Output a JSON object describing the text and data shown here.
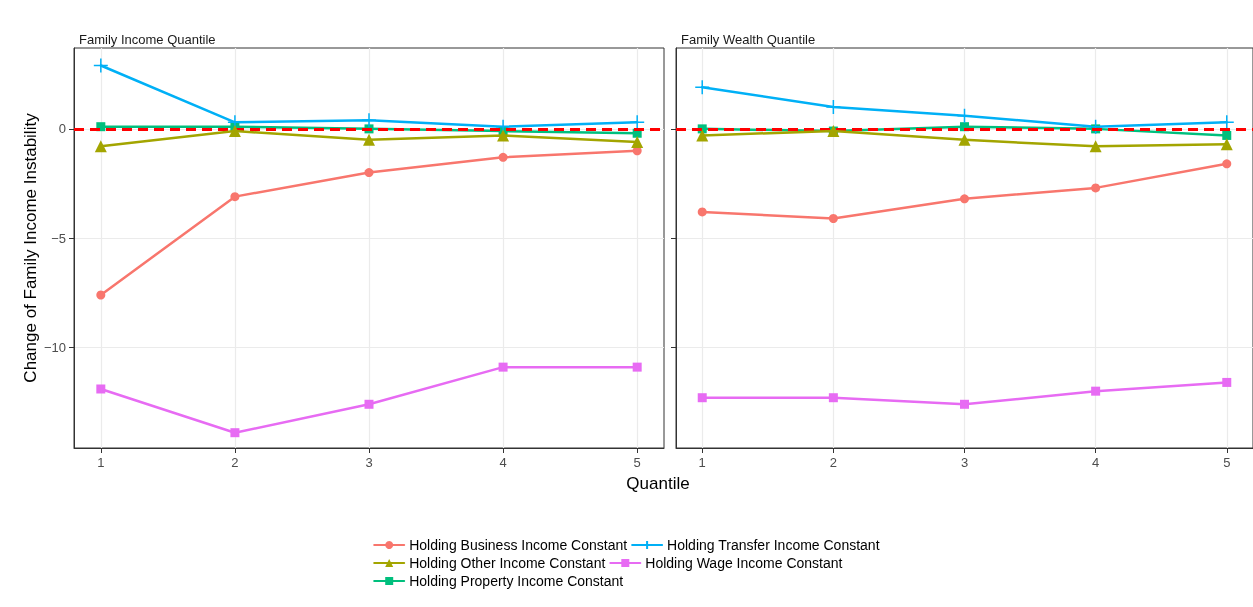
{
  "chart_data": [
    {
      "type": "line",
      "title": "Family Income Quantile",
      "ylabel": "Change of Family Income Instability",
      "x": [
        1,
        2,
        3,
        4,
        5
      ],
      "xlim": [
        0.8,
        5.2
      ],
      "xticks": [
        1,
        2,
        3,
        4,
        5
      ],
      "ylim": [
        -14.6,
        3.7
      ],
      "yticks": [
        -10,
        -5,
        0
      ],
      "grid": true,
      "legend": "bottom",
      "ref_lines": [
        {
          "axis": "y",
          "value": 0,
          "color": "#ff0000",
          "line_style": "dashed"
        }
      ],
      "series": [
        {
          "name": "Holding Business Income Constant",
          "color": "#f8766d",
          "marker": "circle",
          "values": [
            -7.6,
            -3.1,
            -2.0,
            -1.3,
            -1.0
          ]
        },
        {
          "name": "Holding Other Income Constant",
          "color": "#a3a500",
          "marker": "triangle",
          "values": [
            -0.8,
            -0.1,
            -0.5,
            -0.3,
            -0.6
          ]
        },
        {
          "name": "Holding Property Income Constant",
          "color": "#00bf7d",
          "marker": "square",
          "values": [
            0.1,
            0.1,
            0.0,
            -0.1,
            -0.2
          ]
        },
        {
          "name": "Holding Transfer Income Constant",
          "color": "#00b0f6",
          "marker": "cross",
          "values": [
            2.9,
            0.3,
            0.4,
            0.1,
            0.3
          ]
        },
        {
          "name": "Holding Wage Income Constant",
          "color": "#e76bf3",
          "marker": "square",
          "values": [
            -11.9,
            -13.9,
            -12.6,
            -10.9,
            -10.9
          ]
        }
      ]
    },
    {
      "type": "line",
      "title": "Family Wealth Quantile",
      "xlabel": "Quantile",
      "x": [
        1,
        2,
        3,
        4,
        5
      ],
      "xlim": [
        0.8,
        5.2
      ],
      "xticks": [
        1,
        2,
        3,
        4,
        5
      ],
      "ylim": [
        -14.6,
        3.7
      ],
      "yticks": [
        -10,
        -5,
        0
      ],
      "grid": true,
      "tick_labels": "x",
      "ref_lines": [
        {
          "axis": "y",
          "value": 0,
          "color": "#ff0000",
          "line_style": "dashed"
        }
      ],
      "series": [
        {
          "color": "#f8766d",
          "marker": "circle",
          "values": [
            -3.8,
            -4.1,
            -3.2,
            -2.7,
            -1.6
          ]
        },
        {
          "color": "#a3a500",
          "marker": "triangle",
          "values": [
            -0.3,
            -0.1,
            -0.5,
            -0.8,
            -0.7
          ]
        },
        {
          "color": "#00bf7d",
          "marker": "square",
          "values": [
            0.0,
            -0.1,
            0.1,
            0.0,
            -0.3
          ]
        },
        {
          "color": "#00b0f6",
          "marker": "cross",
          "values": [
            1.9,
            1.0,
            0.6,
            0.1,
            0.3
          ]
        },
        {
          "color": "#e76bf3",
          "marker": "square",
          "values": [
            -12.3,
            -12.3,
            -12.6,
            -12.0,
            -11.6
          ]
        }
      ]
    }
  ]
}
